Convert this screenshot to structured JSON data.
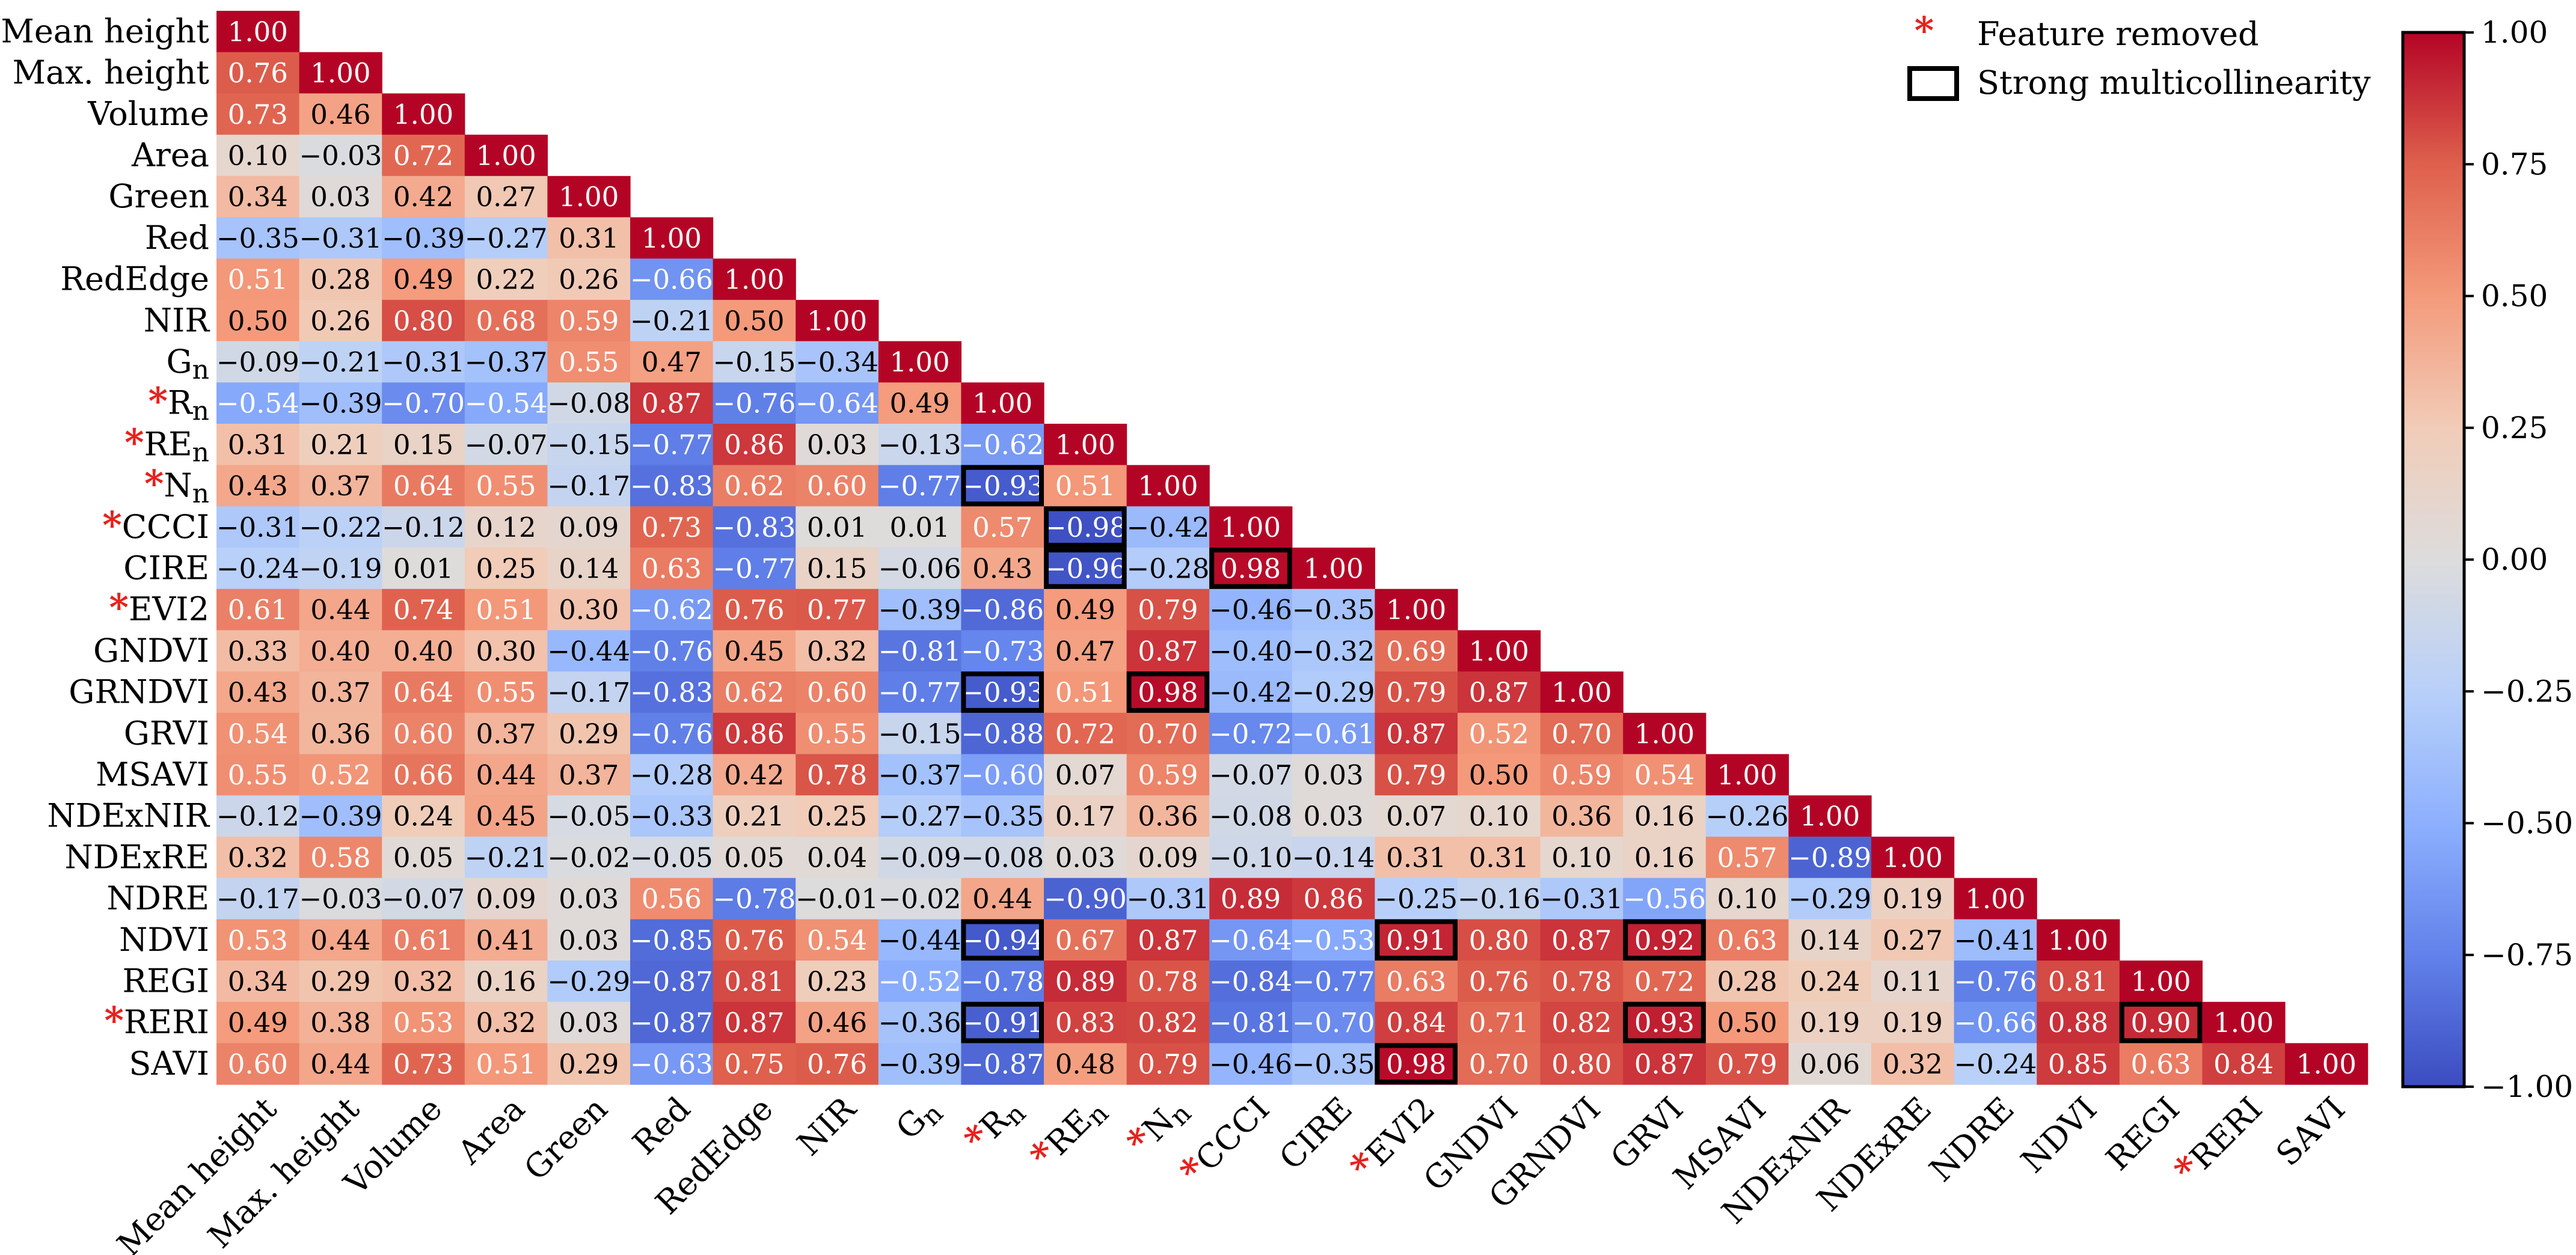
{
  "chart_data": {
    "type": "heatmap",
    "layout": "lower-triangular correlation matrix",
    "labels": [
      {
        "main": "Mean height",
        "sub": "",
        "removed": false
      },
      {
        "main": "Max. height",
        "sub": "",
        "removed": false
      },
      {
        "main": "Volume",
        "sub": "",
        "removed": false
      },
      {
        "main": "Area",
        "sub": "",
        "removed": false
      },
      {
        "main": "Green",
        "sub": "",
        "removed": false
      },
      {
        "main": "Red",
        "sub": "",
        "removed": false
      },
      {
        "main": "RedEdge",
        "sub": "",
        "removed": false
      },
      {
        "main": "NIR",
        "sub": "",
        "removed": false
      },
      {
        "main": "G",
        "sub": "n",
        "removed": false
      },
      {
        "main": "R",
        "sub": "n",
        "removed": true
      },
      {
        "main": "RE",
        "sub": "n",
        "removed": true
      },
      {
        "main": "N",
        "sub": "n",
        "removed": true
      },
      {
        "main": "CCCI",
        "sub": "",
        "removed": true
      },
      {
        "main": "CIRE",
        "sub": "",
        "removed": false
      },
      {
        "main": "EVI2",
        "sub": "",
        "removed": true
      },
      {
        "main": "GNDVI",
        "sub": "",
        "removed": false
      },
      {
        "main": "GRNDVI",
        "sub": "",
        "removed": false
      },
      {
        "main": "GRVI",
        "sub": "",
        "removed": false
      },
      {
        "main": "MSAVI",
        "sub": "",
        "removed": false
      },
      {
        "main": "NDExNIR",
        "sub": "",
        "removed": false
      },
      {
        "main": "NDExRE",
        "sub": "",
        "removed": false
      },
      {
        "main": "NDRE",
        "sub": "",
        "removed": false
      },
      {
        "main": "NDVI",
        "sub": "",
        "removed": false
      },
      {
        "main": "REGI",
        "sub": "",
        "removed": false
      },
      {
        "main": "RERI",
        "sub": "",
        "removed": true
      },
      {
        "main": "SAVI",
        "sub": "",
        "removed": false
      }
    ],
    "matrix": [
      [
        1.0
      ],
      [
        0.76,
        1.0
      ],
      [
        0.73,
        0.46,
        1.0
      ],
      [
        0.1,
        -0.03,
        0.72,
        1.0
      ],
      [
        0.34,
        0.03,
        0.42,
        0.27,
        1.0
      ],
      [
        -0.35,
        -0.31,
        -0.39,
        -0.27,
        0.31,
        1.0
      ],
      [
        0.51,
        0.28,
        0.49,
        0.22,
        0.26,
        -0.66,
        1.0
      ],
      [
        0.5,
        0.26,
        0.8,
        0.68,
        0.59,
        -0.21,
        0.5,
        1.0
      ],
      [
        -0.09,
        -0.21,
        -0.31,
        -0.37,
        0.55,
        0.47,
        -0.15,
        -0.34,
        1.0
      ],
      [
        -0.54,
        -0.39,
        -0.7,
        -0.54,
        -0.08,
        0.87,
        -0.76,
        -0.64,
        0.49,
        1.0
      ],
      [
        0.31,
        0.21,
        0.15,
        -0.07,
        -0.15,
        -0.77,
        0.86,
        0.03,
        -0.13,
        -0.62,
        1.0
      ],
      [
        0.43,
        0.37,
        0.64,
        0.55,
        -0.17,
        -0.83,
        0.62,
        0.6,
        -0.77,
        -0.93,
        0.51,
        1.0
      ],
      [
        -0.31,
        -0.22,
        -0.12,
        0.12,
        0.09,
        0.73,
        -0.83,
        0.01,
        0.01,
        0.57,
        -0.98,
        -0.42,
        1.0
      ],
      [
        -0.24,
        -0.19,
        0.01,
        0.25,
        0.14,
        0.63,
        -0.77,
        0.15,
        -0.06,
        0.43,
        -0.96,
        -0.28,
        0.98,
        1.0
      ],
      [
        0.61,
        0.44,
        0.74,
        0.51,
        0.3,
        -0.62,
        0.76,
        0.77,
        -0.39,
        -0.86,
        0.49,
        0.79,
        -0.46,
        -0.35,
        1.0
      ],
      [
        0.33,
        0.4,
        0.4,
        0.3,
        -0.44,
        -0.76,
        0.45,
        0.32,
        -0.81,
        -0.73,
        0.47,
        0.87,
        -0.4,
        -0.32,
        0.69,
        1.0
      ],
      [
        0.43,
        0.37,
        0.64,
        0.55,
        -0.17,
        -0.83,
        0.62,
        0.6,
        -0.77,
        -0.93,
        0.51,
        0.98,
        -0.42,
        -0.29,
        0.79,
        0.87,
        1.0
      ],
      [
        0.54,
        0.36,
        0.6,
        0.37,
        0.29,
        -0.76,
        0.86,
        0.55,
        -0.15,
        -0.88,
        0.72,
        0.7,
        -0.72,
        -0.61,
        0.87,
        0.52,
        0.7,
        1.0
      ],
      [
        0.55,
        0.52,
        0.66,
        0.44,
        0.37,
        -0.28,
        0.42,
        0.78,
        -0.37,
        -0.6,
        0.07,
        0.59,
        -0.07,
        0.03,
        0.79,
        0.5,
        0.59,
        0.54,
        1.0
      ],
      [
        -0.12,
        -0.39,
        0.24,
        0.45,
        -0.05,
        -0.33,
        0.21,
        0.25,
        -0.27,
        -0.35,
        0.17,
        0.36,
        -0.08,
        0.03,
        0.07,
        0.1,
        0.36,
        0.16,
        -0.26,
        1.0
      ],
      [
        0.32,
        0.58,
        0.05,
        -0.21,
        -0.02,
        -0.05,
        0.05,
        0.04,
        -0.09,
        -0.08,
        0.03,
        0.09,
        -0.1,
        -0.14,
        0.31,
        0.31,
        0.1,
        0.16,
        0.57,
        -0.89,
        1.0
      ],
      [
        -0.17,
        -0.03,
        -0.07,
        0.09,
        0.03,
        0.56,
        -0.78,
        -0.01,
        -0.02,
        0.44,
        -0.9,
        -0.31,
        0.89,
        0.86,
        -0.25,
        -0.16,
        -0.31,
        -0.56,
        0.1,
        -0.29,
        0.19,
        1.0
      ],
      [
        0.53,
        0.44,
        0.61,
        0.41,
        0.03,
        -0.85,
        0.76,
        0.54,
        -0.44,
        -0.94,
        0.67,
        0.87,
        -0.64,
        -0.53,
        0.91,
        0.8,
        0.87,
        0.92,
        0.63,
        0.14,
        0.27,
        -0.41,
        1.0
      ],
      [
        0.34,
        0.29,
        0.32,
        0.16,
        -0.29,
        -0.87,
        0.81,
        0.23,
        -0.52,
        -0.78,
        0.89,
        0.78,
        -0.84,
        -0.77,
        0.63,
        0.76,
        0.78,
        0.72,
        0.28,
        0.24,
        0.11,
        -0.76,
        0.81,
        1.0
      ],
      [
        0.49,
        0.38,
        0.53,
        0.32,
        0.03,
        -0.87,
        0.87,
        0.46,
        -0.36,
        -0.91,
        0.83,
        0.82,
        -0.81,
        -0.7,
        0.84,
        0.71,
        0.82,
        0.93,
        0.5,
        0.19,
        0.19,
        -0.66,
        0.88,
        0.9,
        1.0
      ],
      [
        0.6,
        0.44,
        0.73,
        0.51,
        0.29,
        -0.63,
        0.75,
        0.76,
        -0.39,
        -0.87,
        0.48,
        0.79,
        -0.46,
        -0.35,
        0.98,
        0.7,
        0.8,
        0.87,
        0.79,
        0.06,
        0.32,
        -0.24,
        0.85,
        0.63,
        0.84,
        1.0
      ]
    ],
    "highlighted_cells": [
      [
        11,
        9
      ],
      [
        12,
        10
      ],
      [
        13,
        10
      ],
      [
        13,
        12
      ],
      [
        16,
        9
      ],
      [
        16,
        11
      ],
      [
        22,
        9
      ],
      [
        22,
        14
      ],
      [
        22,
        17
      ],
      [
        24,
        9
      ],
      [
        24,
        17
      ],
      [
        24,
        23
      ],
      [
        25,
        14
      ]
    ],
    "colormap": "coolwarm",
    "vmin": -1.0,
    "vmax": 1.0,
    "colorbar_ticks": [
      "1.00",
      "0.75",
      "0.50",
      "0.25",
      "0.00",
      "−0.25",
      "−0.50",
      "−0.75",
      "−1.00"
    ],
    "colorbar_tick_values": [
      1.0,
      0.75,
      0.5,
      0.25,
      0.0,
      -0.25,
      -0.5,
      -0.75,
      -1.0
    ],
    "legend": {
      "removed_marker": "*",
      "removed_label": "Feature removed",
      "highlight_label": "Strong multicollinearity",
      "placement": "top-right"
    }
  },
  "colors": {
    "removed_star": "#e8201c",
    "highlight_border": "#000000"
  }
}
